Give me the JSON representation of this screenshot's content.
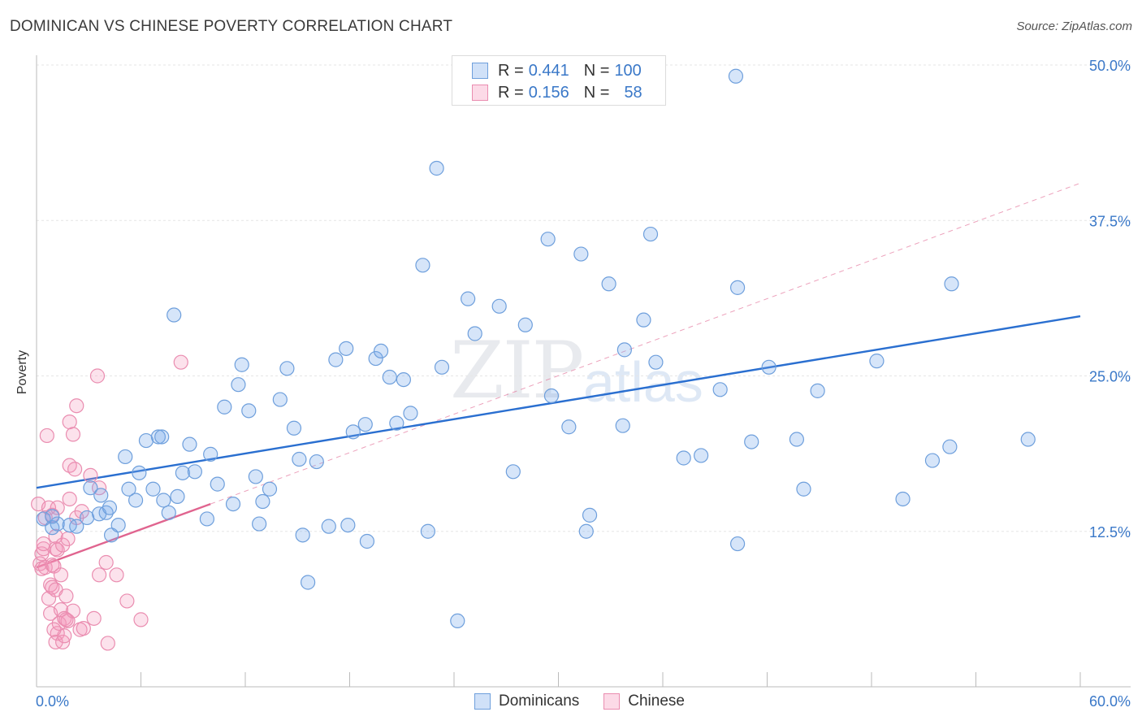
{
  "title": "DOMINICAN VS CHINESE POVERTY CORRELATION CHART",
  "source": "Source: ZipAtlas.com",
  "watermark": {
    "zip": "ZIP",
    "atlas": "atlas"
  },
  "colors": {
    "dominican_fill": "rgba(120,170,235,0.30)",
    "dominican_stroke": "#6e9fdc",
    "dominican_line": "#2a6fd0",
    "chinese_fill": "rgba(245,150,185,0.28)",
    "chinese_stroke": "#ea8db0",
    "chinese_line": "#e0648f",
    "axis_text": "#3a78c8",
    "grid": "#e6e6e6"
  },
  "legend_top": {
    "rows": [
      {
        "r_label": "R = ",
        "r_value": "0.441",
        "n_label": "N = ",
        "n_value": "100"
      },
      {
        "r_label": "R = ",
        "r_value": "0.156",
        "n_label": "N = ",
        "n_value": "58"
      }
    ]
  },
  "legend_bottom": {
    "dominicans": "Dominicans",
    "chinese": "Chinese"
  },
  "chart_data": {
    "type": "scatter",
    "title": "DOMINICAN VS CHINESE POVERTY CORRELATION CHART",
    "xlabel": "",
    "ylabel": "Poverty",
    "xlim": [
      0,
      60
    ],
    "ylim": [
      0,
      50
    ],
    "x_tick_labels": [
      "0.0%",
      "60.0%"
    ],
    "y_tick_labels": [
      "12.5%",
      "25.0%",
      "37.5%",
      "50.0%"
    ],
    "y_ticks": [
      12.5,
      25.0,
      37.5,
      50.0
    ],
    "grid": true,
    "series": [
      {
        "name": "Dominicans",
        "trend": {
          "x0": 0,
          "y0": 16.0,
          "x1": 60,
          "y1": 29.8
        },
        "points": [
          [
            0.4,
            13.5
          ],
          [
            0.9,
            12.8
          ],
          [
            1.2,
            13.1
          ],
          [
            1.9,
            13.0
          ],
          [
            2.3,
            12.9
          ],
          [
            2.9,
            13.6
          ],
          [
            3.1,
            16.0
          ],
          [
            3.6,
            13.9
          ],
          [
            4.0,
            14.0
          ],
          [
            3.7,
            15.4
          ],
          [
            4.3,
            12.2
          ],
          [
            4.2,
            14.4
          ],
          [
            4.7,
            13.0
          ],
          [
            5.1,
            18.5
          ],
          [
            5.3,
            15.9
          ],
          [
            5.7,
            15.0
          ],
          [
            5.9,
            17.2
          ],
          [
            6.3,
            19.8
          ],
          [
            6.7,
            15.9
          ],
          [
            7.0,
            20.1
          ],
          [
            7.3,
            15.0
          ],
          [
            7.6,
            14.0
          ],
          [
            7.9,
            29.9
          ],
          [
            8.1,
            15.3
          ],
          [
            8.4,
            17.2
          ],
          [
            8.8,
            19.5
          ],
          [
            9.1,
            17.3
          ],
          [
            9.8,
            13.5
          ],
          [
            10.0,
            18.7
          ],
          [
            10.4,
            16.3
          ],
          [
            10.8,
            22.5
          ],
          [
            11.3,
            14.7
          ],
          [
            11.6,
            24.3
          ],
          [
            11.8,
            25.9
          ],
          [
            12.2,
            22.2
          ],
          [
            12.6,
            16.9
          ],
          [
            12.8,
            13.1
          ],
          [
            13.0,
            14.9
          ],
          [
            13.4,
            15.9
          ],
          [
            14.0,
            23.1
          ],
          [
            14.4,
            25.6
          ],
          [
            14.8,
            20.8
          ],
          [
            15.1,
            18.3
          ],
          [
            15.3,
            12.2
          ],
          [
            15.6,
            8.4
          ],
          [
            16.1,
            18.1
          ],
          [
            16.8,
            12.9
          ],
          [
            17.2,
            26.3
          ],
          [
            17.8,
            27.2
          ],
          [
            17.9,
            13.0
          ],
          [
            18.2,
            20.5
          ],
          [
            18.9,
            21.1
          ],
          [
            19.0,
            11.7
          ],
          [
            19.5,
            26.4
          ],
          [
            19.8,
            27.0
          ],
          [
            20.3,
            24.9
          ],
          [
            20.7,
            21.2
          ],
          [
            21.1,
            24.7
          ],
          [
            21.5,
            22.0
          ],
          [
            22.2,
            33.9
          ],
          [
            22.5,
            12.5
          ],
          [
            23.0,
            41.7
          ],
          [
            23.3,
            25.7
          ],
          [
            24.2,
            5.3
          ],
          [
            24.8,
            31.2
          ],
          [
            25.2,
            28.4
          ],
          [
            26.6,
            30.6
          ],
          [
            27.4,
            17.3
          ],
          [
            28.1,
            29.1
          ],
          [
            29.4,
            36.0
          ],
          [
            29.6,
            23.4
          ],
          [
            30.6,
            20.9
          ],
          [
            31.3,
            34.8
          ],
          [
            31.6,
            12.5
          ],
          [
            31.8,
            13.8
          ],
          [
            32.9,
            32.4
          ],
          [
            33.7,
            21.0
          ],
          [
            33.8,
            27.1
          ],
          [
            34.9,
            29.5
          ],
          [
            35.3,
            36.4
          ],
          [
            35.6,
            26.1
          ],
          [
            37.2,
            18.4
          ],
          [
            38.2,
            18.6
          ],
          [
            39.3,
            23.9
          ],
          [
            40.2,
            49.1
          ],
          [
            40.3,
            32.1
          ],
          [
            41.1,
            19.7
          ],
          [
            42.1,
            25.7
          ],
          [
            43.7,
            19.9
          ],
          [
            44.1,
            15.9
          ],
          [
            44.9,
            23.8
          ],
          [
            48.3,
            26.2
          ],
          [
            49.8,
            15.1
          ],
          [
            51.5,
            18.2
          ],
          [
            52.5,
            19.3
          ],
          [
            52.6,
            32.4
          ],
          [
            57.0,
            19.9
          ],
          [
            40.3,
            11.5
          ],
          [
            7.2,
            20.1
          ],
          [
            0.9,
            13.7
          ]
        ]
      },
      {
        "name": "Chinese",
        "trend": {
          "x0": 0,
          "y0": 9.6,
          "x1": 10,
          "y1": 14.7
        },
        "trend_ext": {
          "x0": 10,
          "y0": 14.7,
          "x1": 60,
          "y1": 40.5
        },
        "points": [
          [
            0.1,
            14.7
          ],
          [
            0.2,
            9.9
          ],
          [
            0.3,
            9.5
          ],
          [
            0.3,
            10.7
          ],
          [
            0.4,
            11.1
          ],
          [
            0.5,
            9.6
          ],
          [
            0.5,
            13.6
          ],
          [
            0.6,
            20.2
          ],
          [
            0.7,
            14.4
          ],
          [
            0.7,
            7.1
          ],
          [
            0.8,
            8.2
          ],
          [
            0.8,
            5.9
          ],
          [
            0.9,
            9.8
          ],
          [
            0.9,
            8.0
          ],
          [
            0.9,
            13.8
          ],
          [
            1.0,
            9.7
          ],
          [
            1.1,
            7.8
          ],
          [
            1.1,
            11.1
          ],
          [
            1.1,
            12.1
          ],
          [
            1.2,
            4.3
          ],
          [
            1.1,
            3.6
          ],
          [
            1.2,
            11.0
          ],
          [
            1.2,
            14.4
          ],
          [
            1.3,
            5.1
          ],
          [
            1.4,
            9.0
          ],
          [
            1.4,
            6.2
          ],
          [
            1.5,
            11.4
          ],
          [
            1.5,
            3.6
          ],
          [
            1.6,
            4.1
          ],
          [
            1.6,
            5.5
          ],
          [
            1.7,
            7.3
          ],
          [
            1.8,
            11.9
          ],
          [
            1.8,
            5.3
          ],
          [
            1.9,
            17.8
          ],
          [
            1.9,
            15.1
          ],
          [
            1.9,
            21.3
          ],
          [
            2.1,
            6.1
          ],
          [
            2.1,
            20.3
          ],
          [
            2.2,
            17.5
          ],
          [
            2.3,
            13.6
          ],
          [
            2.3,
            22.6
          ],
          [
            2.5,
            4.6
          ],
          [
            2.7,
            4.7
          ],
          [
            3.1,
            17.0
          ],
          [
            3.3,
            5.5
          ],
          [
            3.5,
            25.0
          ],
          [
            3.6,
            9.0
          ],
          [
            3.6,
            16.0
          ],
          [
            4.0,
            10.0
          ],
          [
            4.1,
            3.5
          ],
          [
            4.6,
            9.0
          ],
          [
            5.2,
            6.9
          ],
          [
            6.0,
            5.4
          ],
          [
            8.3,
            26.1
          ],
          [
            1.0,
            4.6
          ],
          [
            0.4,
            11.5
          ],
          [
            1.7,
            5.4
          ],
          [
            2.6,
            14.1
          ]
        ]
      }
    ]
  }
}
